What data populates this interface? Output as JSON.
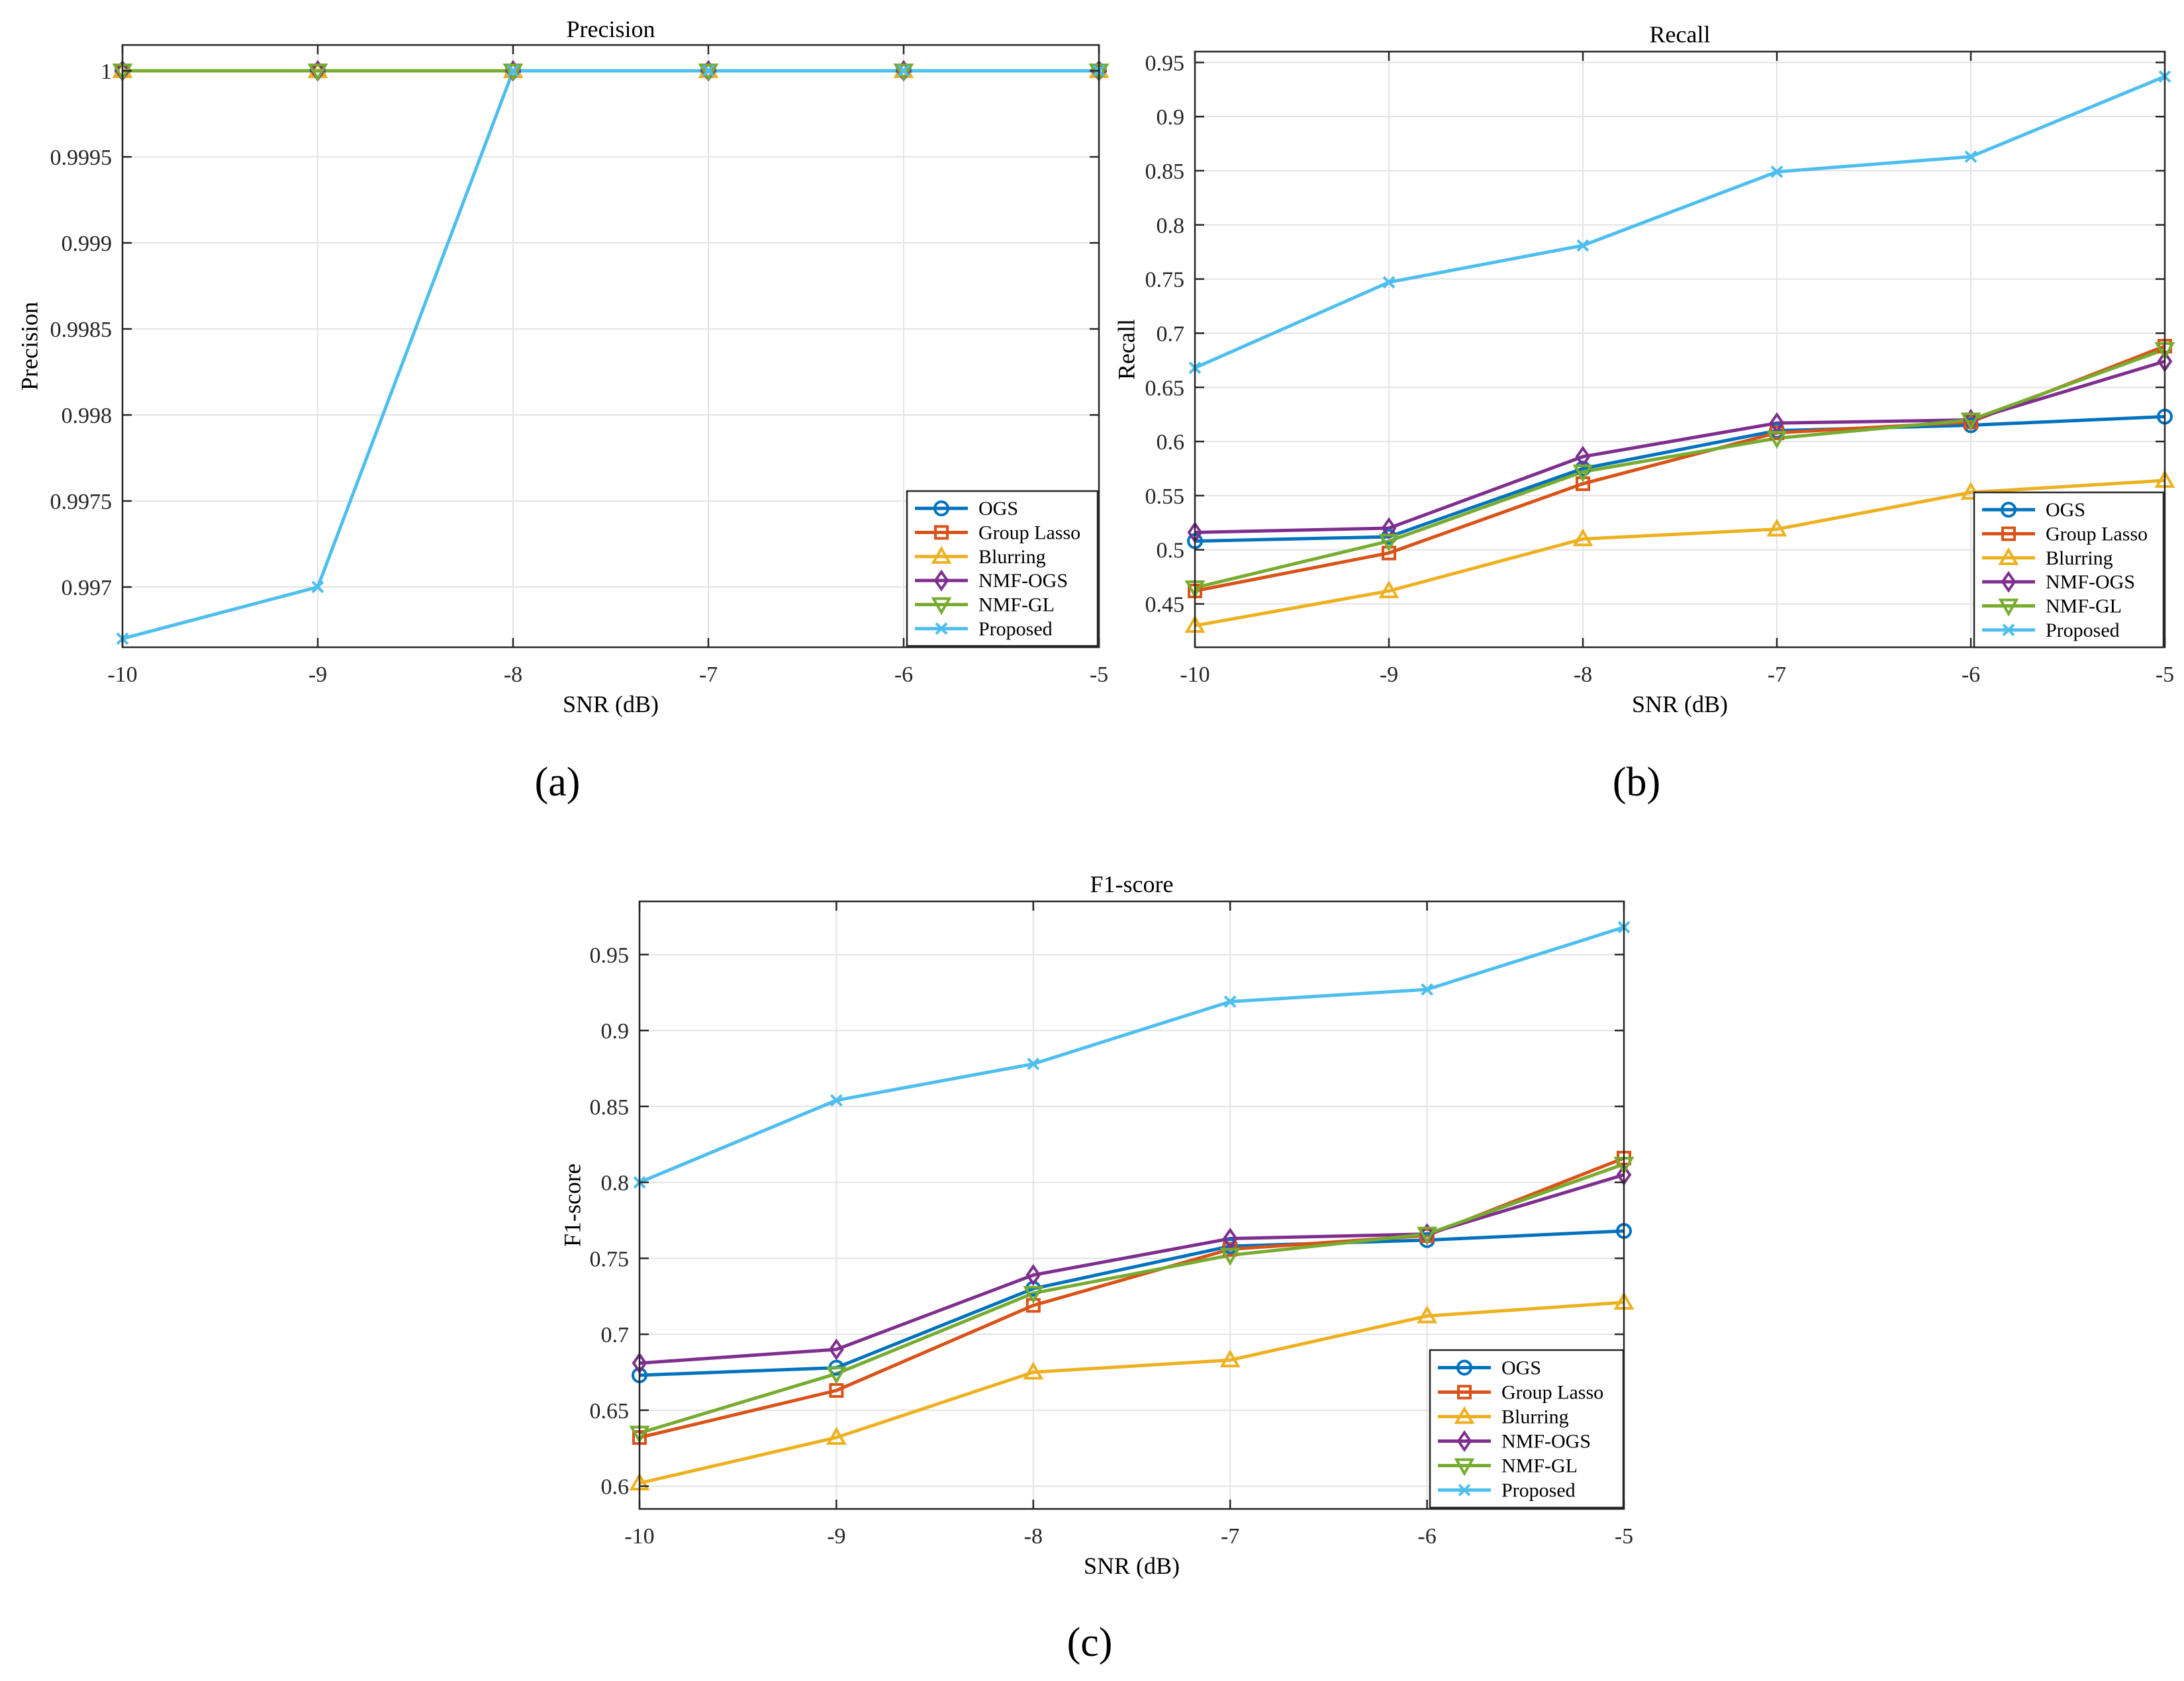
{
  "colors": {
    "OGS": "#0072BD",
    "Group Lasso": "#D95319",
    "Blurring": "#EDB120",
    "NMF-OGS": "#7E2F8E",
    "NMF-GL": "#77AC30",
    "Proposed": "#4DBEEE",
    "grid": "#e3e3e3",
    "axis": "#262626"
  },
  "chart_data": [
    {
      "type": "line",
      "panel_label": "(a)",
      "title": "Precision",
      "xlabel": "SNR (dB)",
      "ylabel": "Precision",
      "xlim": [
        -10,
        -5
      ],
      "ylim": [
        0.99665,
        1.00015
      ],
      "x": [
        -10,
        -9,
        -8,
        -7,
        -6,
        -5
      ],
      "xticks": [
        -10,
        -9,
        -8,
        -7,
        -6,
        -5
      ],
      "xtick_labels": [
        "-10",
        "-9",
        "-8",
        "-7",
        "-6",
        "-5"
      ],
      "yticks": [
        0.997,
        0.9975,
        0.998,
        0.9985,
        0.999,
        0.9995,
        1
      ],
      "ytick_labels": [
        "0.997",
        "0.9975",
        "0.998",
        "0.9985",
        "0.999",
        "0.9995",
        "1"
      ],
      "grid": true,
      "legend_position": "bottom-right",
      "series": [
        {
          "name": "OGS",
          "marker": "circle",
          "values": [
            1,
            1,
            1,
            1,
            1,
            1
          ]
        },
        {
          "name": "Group Lasso",
          "marker": "square",
          "values": [
            1,
            1,
            1,
            1,
            1,
            1
          ]
        },
        {
          "name": "Blurring",
          "marker": "triangle-up",
          "values": [
            1,
            1,
            1,
            1,
            1,
            1
          ]
        },
        {
          "name": "NMF-OGS",
          "marker": "diamond",
          "values": [
            1,
            1,
            1,
            1,
            1,
            1
          ]
        },
        {
          "name": "NMF-GL",
          "marker": "triangle-down",
          "values": [
            1,
            1,
            1,
            1,
            1,
            1
          ]
        },
        {
          "name": "Proposed",
          "marker": "x",
          "values": [
            0.9967,
            0.997,
            1,
            1,
            1,
            1
          ]
        }
      ]
    },
    {
      "type": "line",
      "panel_label": "(b)",
      "title": "Recall",
      "xlabel": "SNR (dB)",
      "ylabel": "Recall",
      "xlim": [
        -10,
        -5
      ],
      "ylim": [
        0.41,
        0.96
      ],
      "x": [
        -10,
        -9,
        -8,
        -7,
        -6,
        -5
      ],
      "xticks": [
        -10,
        -9,
        -8,
        -7,
        -6,
        -5
      ],
      "xtick_labels": [
        "-10",
        "-9",
        "-8",
        "-7",
        "-6",
        "-5"
      ],
      "yticks": [
        0.45,
        0.5,
        0.55,
        0.6,
        0.65,
        0.7,
        0.75,
        0.8,
        0.85,
        0.9,
        0.95
      ],
      "ytick_labels": [
        "0.45",
        "0.5",
        "0.55",
        "0.6",
        "0.65",
        "0.7",
        "0.75",
        "0.8",
        "0.85",
        "0.9",
        "0.95"
      ],
      "grid": true,
      "legend_position": "bottom-right",
      "series": [
        {
          "name": "OGS",
          "marker": "circle",
          "values": [
            0.508,
            0.512,
            0.575,
            0.61,
            0.615,
            0.623
          ]
        },
        {
          "name": "Group Lasso",
          "marker": "square",
          "values": [
            0.462,
            0.497,
            0.561,
            0.608,
            0.618,
            0.688
          ]
        },
        {
          "name": "Blurring",
          "marker": "triangle-up",
          "values": [
            0.43,
            0.462,
            0.51,
            0.519,
            0.553,
            0.564
          ]
        },
        {
          "name": "NMF-OGS",
          "marker": "diamond",
          "values": [
            0.516,
            0.52,
            0.586,
            0.617,
            0.62,
            0.674
          ]
        },
        {
          "name": "NMF-GL",
          "marker": "triangle-down",
          "values": [
            0.465,
            0.508,
            0.572,
            0.603,
            0.62,
            0.685
          ]
        },
        {
          "name": "Proposed",
          "marker": "x",
          "values": [
            0.668,
            0.747,
            0.781,
            0.849,
            0.863,
            0.937
          ]
        }
      ]
    },
    {
      "type": "line",
      "panel_label": "(c)",
      "title": "F1-score",
      "xlabel": "SNR (dB)",
      "ylabel": "F1-score",
      "xlim": [
        -10,
        -5
      ],
      "ylim": [
        0.585,
        0.985
      ],
      "x": [
        -10,
        -9,
        -8,
        -7,
        -6,
        -5
      ],
      "xticks": [
        -10,
        -9,
        -8,
        -7,
        -6,
        -5
      ],
      "xtick_labels": [
        "-10",
        "-9",
        "-8",
        "-7",
        "-6",
        "-5"
      ],
      "yticks": [
        0.6,
        0.65,
        0.7,
        0.75,
        0.8,
        0.85,
        0.9,
        0.95
      ],
      "ytick_labels": [
        "0.6",
        "0.65",
        "0.7",
        "0.75",
        "0.8",
        "0.85",
        "0.9",
        "0.95"
      ],
      "grid": true,
      "legend_position": "bottom-right",
      "series": [
        {
          "name": "OGS",
          "marker": "circle",
          "values": [
            0.673,
            0.678,
            0.73,
            0.758,
            0.762,
            0.768
          ]
        },
        {
          "name": "Group Lasso",
          "marker": "square",
          "values": [
            0.632,
            0.663,
            0.719,
            0.756,
            0.765,
            0.816
          ]
        },
        {
          "name": "Blurring",
          "marker": "triangle-up",
          "values": [
            0.602,
            0.632,
            0.675,
            0.683,
            0.712,
            0.721
          ]
        },
        {
          "name": "NMF-OGS",
          "marker": "diamond",
          "values": [
            0.681,
            0.69,
            0.739,
            0.763,
            0.766,
            0.805
          ]
        },
        {
          "name": "NMF-GL",
          "marker": "triangle-down",
          "values": [
            0.635,
            0.674,
            0.727,
            0.752,
            0.766,
            0.812
          ]
        },
        {
          "name": "Proposed",
          "marker": "x",
          "values": [
            0.8,
            0.854,
            0.878,
            0.919,
            0.927,
            0.968
          ]
        }
      ]
    }
  ]
}
